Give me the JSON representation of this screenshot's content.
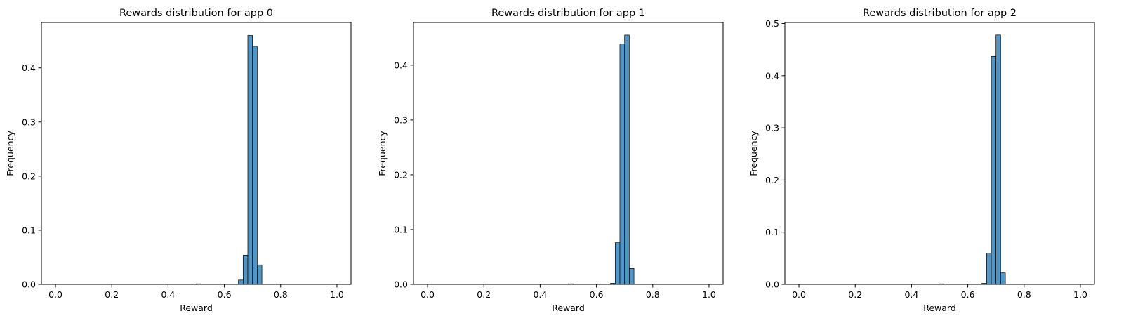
{
  "chart_data": [
    {
      "type": "bar",
      "title": "Rewards distribution for app 0",
      "xlabel": "Reward",
      "ylabel": "Frequency",
      "xlim": [
        -0.05,
        1.05
      ],
      "ylim": [
        0,
        0.484
      ],
      "xticks": [
        "0.0",
        "0.2",
        "0.4",
        "0.6",
        "0.8",
        "1.0"
      ],
      "yticks": [
        "0.0",
        "0.1",
        "0.2",
        "0.3",
        "0.4"
      ],
      "bin_width": 0.0167,
      "bins": [
        {
          "x0": 0.5,
          "value": 0.001
        },
        {
          "x0": 0.65,
          "value": 0.008
        },
        {
          "x0": 0.6667,
          "value": 0.054
        },
        {
          "x0": 0.6833,
          "value": 0.46
        },
        {
          "x0": 0.7,
          "value": 0.44
        },
        {
          "x0": 0.7167,
          "value": 0.036
        }
      ],
      "bar_color": "#4a90c2",
      "grid": false,
      "legend": "none"
    },
    {
      "type": "bar",
      "title": "Rewards distribution for app 1",
      "xlabel": "Reward",
      "ylabel": "Frequency",
      "xlim": [
        -0.05,
        1.05
      ],
      "ylim": [
        0,
        0.478
      ],
      "xticks": [
        "0.0",
        "0.2",
        "0.4",
        "0.6",
        "0.8",
        "1.0"
      ],
      "yticks": [
        "0.0",
        "0.1",
        "0.2",
        "0.3",
        "0.4"
      ],
      "bin_width": 0.0167,
      "bins": [
        {
          "x0": 0.5,
          "value": 0.001
        },
        {
          "x0": 0.65,
          "value": 0.002
        },
        {
          "x0": 0.6667,
          "value": 0.076
        },
        {
          "x0": 0.6833,
          "value": 0.439
        },
        {
          "x0": 0.7,
          "value": 0.455
        },
        {
          "x0": 0.7167,
          "value": 0.029
        }
      ],
      "bar_color": "#4a90c2",
      "grid": false,
      "legend": "none"
    },
    {
      "type": "bar",
      "title": "Rewards distribution for app 2",
      "xlabel": "Reward",
      "ylabel": "Frequency",
      "xlim": [
        -0.05,
        1.05
      ],
      "ylim": [
        0,
        0.502
      ],
      "xticks": [
        "0.0",
        "0.2",
        "0.4",
        "0.6",
        "0.8",
        "1.0"
      ],
      "yticks": [
        "0.0",
        "0.1",
        "0.2",
        "0.3",
        "0.4",
        "0.5"
      ],
      "bin_width": 0.0167,
      "bins": [
        {
          "x0": 0.5,
          "value": 0.001
        },
        {
          "x0": 0.65,
          "value": 0.002
        },
        {
          "x0": 0.6667,
          "value": 0.06
        },
        {
          "x0": 0.6833,
          "value": 0.437
        },
        {
          "x0": 0.7,
          "value": 0.478
        },
        {
          "x0": 0.7167,
          "value": 0.022
        }
      ],
      "bar_color": "#4a90c2",
      "grid": false,
      "legend": "none"
    }
  ]
}
